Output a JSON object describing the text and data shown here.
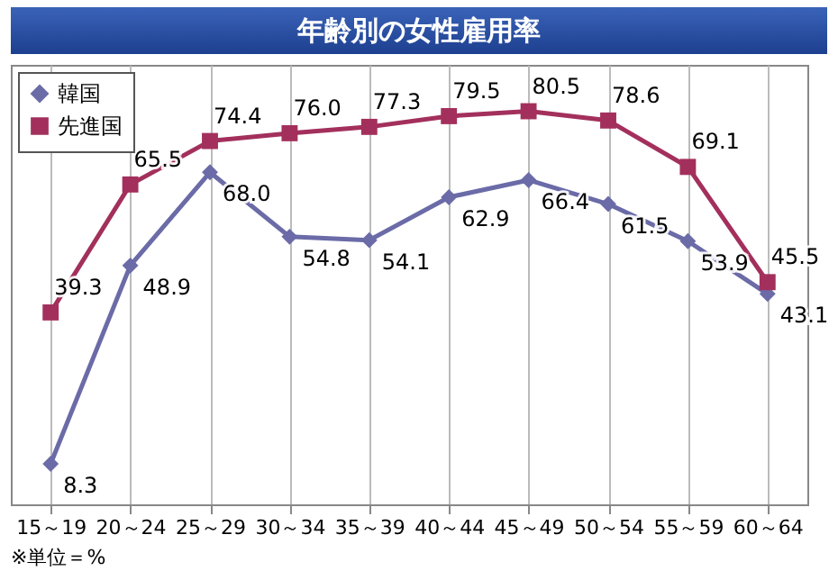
{
  "chart_data": {
    "type": "line",
    "title": "年齢別の女性雇用率",
    "categories": [
      "15～19",
      "20～24",
      "25～29",
      "30～34",
      "35～39",
      "40～44",
      "45～49",
      "50～54",
      "55～59",
      "60～64"
    ],
    "series": [
      {
        "name": "韓国",
        "color": "#6b6ba8",
        "marker": "diamond",
        "values": [
          8.3,
          48.9,
          68.0,
          54.8,
          54.1,
          62.9,
          66.4,
          61.5,
          53.9,
          43.1
        ],
        "value_labels": [
          "8.3",
          "48.9",
          "68.0",
          "54.8",
          "54.1",
          "62.9",
          "66.4",
          "61.5",
          "53.9",
          "43.1"
        ]
      },
      {
        "name": "先進国",
        "color": "#a3305c",
        "marker": "square",
        "values": [
          39.3,
          65.5,
          74.4,
          76.0,
          77.3,
          79.5,
          80.5,
          78.6,
          69.1,
          45.5
        ],
        "value_labels": [
          "39.3",
          "65.5",
          "74.4",
          "76.0",
          "77.3",
          "79.5",
          "80.5",
          "78.6",
          "69.1",
          "45.5"
        ]
      }
    ],
    "grid": "x",
    "legend": "top left",
    "line_style": "solid",
    "annotations": [
      "※単位＝%"
    ]
  }
}
